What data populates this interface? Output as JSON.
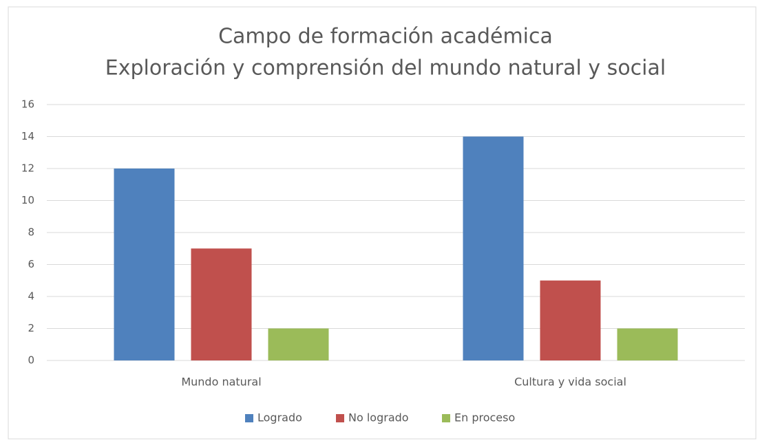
{
  "chart_data": {
    "type": "bar",
    "title": [
      "Campo de formación académica",
      "Exploración y comprensión del mundo natural y social"
    ],
    "categories": [
      "Mundo natural",
      "Cultura y vida social"
    ],
    "series": [
      {
        "name": "Logrado",
        "color": "#4f81bd",
        "values": [
          12,
          14
        ]
      },
      {
        "name": "No logrado",
        "color": "#c0504d",
        "values": [
          7,
          5
        ]
      },
      {
        "name": "En proceso",
        "color": "#9bbb59",
        "values": [
          2,
          2
        ]
      }
    ],
    "ylim": [
      0,
      16
    ],
    "yticks": [
      0,
      2,
      4,
      6,
      8,
      10,
      12,
      14,
      16
    ],
    "grid": true,
    "legend": "bottom"
  }
}
